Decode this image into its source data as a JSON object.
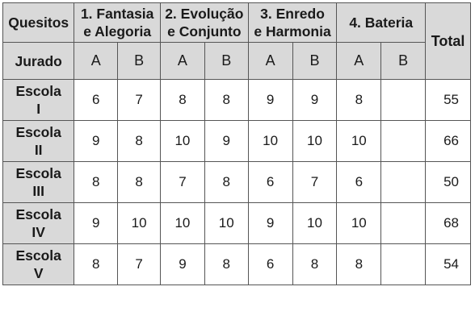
{
  "header": {
    "quesitos": "Quesitos",
    "jurado": "Jurado",
    "total": "Total",
    "groups": [
      {
        "line1": "1. Fantasia",
        "line2": "e Alegoria"
      },
      {
        "line1": "2. Evolução",
        "line2": "e Conjunto"
      },
      {
        "line1": "3. Enredo",
        "line2": "e Harmonia"
      },
      {
        "line1": "4. Bateria",
        "line2": ""
      }
    ],
    "sub": [
      "A",
      "B",
      "A",
      "B",
      "A",
      "B",
      "A",
      "B"
    ]
  },
  "rows": [
    {
      "name1": "Escola",
      "name2": "I",
      "values": [
        "6",
        "7",
        "8",
        "8",
        "9",
        "9",
        "8",
        ""
      ],
      "total": "55"
    },
    {
      "name1": "Escola",
      "name2": "II",
      "values": [
        "9",
        "8",
        "10",
        "9",
        "10",
        "10",
        "10",
        ""
      ],
      "total": "66"
    },
    {
      "name1": "Escola",
      "name2": "III",
      "values": [
        "8",
        "8",
        "7",
        "8",
        "6",
        "7",
        "6",
        ""
      ],
      "total": "50"
    },
    {
      "name1": "Escola",
      "name2": "IV",
      "values": [
        "9",
        "10",
        "10",
        "10",
        "9",
        "10",
        "10",
        ""
      ],
      "total": "68"
    },
    {
      "name1": "Escola",
      "name2": "V",
      "values": [
        "8",
        "7",
        "9",
        "8",
        "6",
        "8",
        "8",
        ""
      ],
      "total": "54"
    }
  ]
}
